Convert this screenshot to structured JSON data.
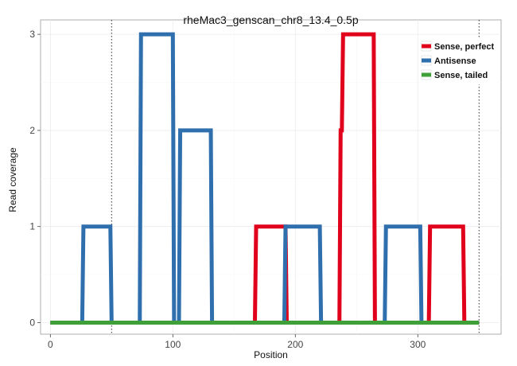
{
  "chart_data": {
    "type": "line",
    "title": "rheMac3_genscan_chr8_13.4_0.5p",
    "xlabel": "Position",
    "ylabel": "Read coverage",
    "xlim": [
      -8,
      368
    ],
    "ylim": [
      -0.12,
      3.15
    ],
    "x_ticks": [
      0,
      100,
      200,
      300
    ],
    "y_ticks": [
      0,
      1,
      2,
      3
    ],
    "grid": true,
    "legend_position": "top-right",
    "vlines": [
      50,
      350
    ],
    "series": [
      {
        "name": "Sense, perfect",
        "color": "#e0001b",
        "x": [
          0,
          167,
          168,
          192,
          193,
          236,
          237,
          238,
          239,
          264,
          265,
          309,
          310,
          337,
          338,
          350
        ],
        "y": [
          0,
          0,
          1,
          1,
          0,
          0,
          2,
          2,
          3,
          3,
          0,
          0,
          1,
          1,
          0,
          0
        ]
      },
      {
        "name": "Antisense",
        "color": "#2f6fae",
        "x": [
          0,
          26,
          27,
          49,
          50,
          73,
          74,
          100,
          101,
          105,
          106,
          131,
          132,
          191,
          192,
          220,
          221,
          273,
          274,
          302,
          303,
          350
        ],
        "y": [
          0,
          0,
          1,
          1,
          0,
          0,
          3,
          3,
          0,
          0,
          2,
          2,
          0,
          0,
          1,
          1,
          0,
          0,
          1,
          1,
          0,
          0
        ]
      },
      {
        "name": "Sense, tailed",
        "color": "#3fa03a",
        "x": [
          0,
          350
        ],
        "y": [
          0,
          0
        ]
      }
    ]
  }
}
